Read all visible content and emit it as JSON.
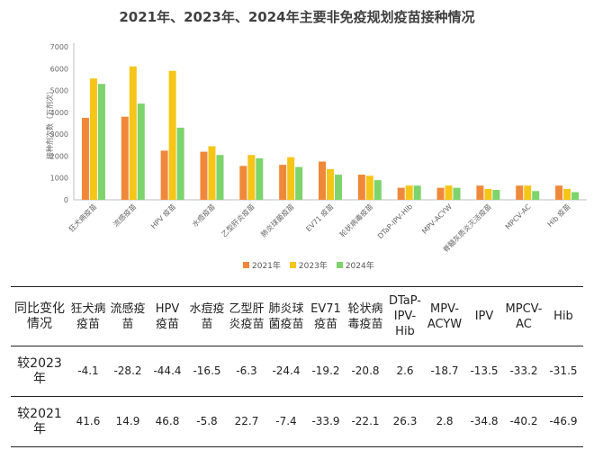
{
  "title": "2021年、2023年、2024年主要非免疫规划疫苗接种情况",
  "chart_data": {
    "type": "bar",
    "title": "2021年、2023年、2024年主要非免疫规划疫苗接种情况",
    "ylabel": "接种剂次数（万剂次）",
    "ylim": [
      0,
      7000
    ],
    "yticks": [
      0,
      1000,
      2000,
      3000,
      4000,
      5000,
      6000,
      7000
    ],
    "grid": false,
    "legend_position": "bottom",
    "categories": [
      "狂犬病疫苗",
      "流感疫苗",
      "HPV 疫苗",
      "水痘疫苗",
      "乙型肝炎疫苗",
      "肺炎球菌疫苗",
      "EV71 疫苗",
      "轮状病毒疫苗",
      "DTaP-IPV-Hib",
      "MPV-ACYW",
      "脊髓灰质炎灭活疫苗",
      "MPCV-AC",
      "Hib 疫苗"
    ],
    "series": [
      {
        "name": "2021年",
        "color": "#F0883A",
        "values": [
          3750,
          3800,
          2250,
          2200,
          1550,
          1600,
          1750,
          1150,
          550,
          550,
          650,
          650,
          650
        ]
      },
      {
        "name": "2023年",
        "color": "#F5C518",
        "values": [
          5550,
          6100,
          5900,
          2450,
          2050,
          1950,
          1400,
          1100,
          650,
          650,
          500,
          650,
          500
        ]
      },
      {
        "name": "2024年",
        "color": "#7DD36C",
        "values": [
          5300,
          4400,
          3300,
          2050,
          1900,
          1500,
          1150,
          900,
          650,
          550,
          450,
          400,
          350
        ]
      }
    ]
  },
  "table": {
    "header_label": "同比变化情况",
    "columns": [
      "狂犬病疫苗",
      "流感疫苗",
      "HPV 疫苗",
      "水痘疫苗",
      "乙型肝炎疫苗",
      "肺炎球菌疫苗",
      "EV71 疫苗",
      "轮状病毒疫苗",
      "DTaP-IPV-Hib",
      "MPV-ACYW",
      "IPV",
      "MPCV-AC",
      "Hib"
    ],
    "rows": [
      {
        "label": "较2023年",
        "values": [
          "-4.1",
          "-28.2",
          "-44.4",
          "-16.5",
          "-6.3",
          "-24.4",
          "-19.2",
          "-20.8",
          "2.6",
          "-18.7",
          "-13.5",
          "-33.2",
          "-31.5"
        ]
      },
      {
        "label": "较2021年",
        "values": [
          "41.6",
          "14.9",
          "46.8",
          "-5.8",
          "22.7",
          "-7.4",
          "-33.9",
          "-22.1",
          "26.3",
          "2.8",
          "-34.8",
          "-40.2",
          "-46.9"
        ]
      }
    ]
  }
}
